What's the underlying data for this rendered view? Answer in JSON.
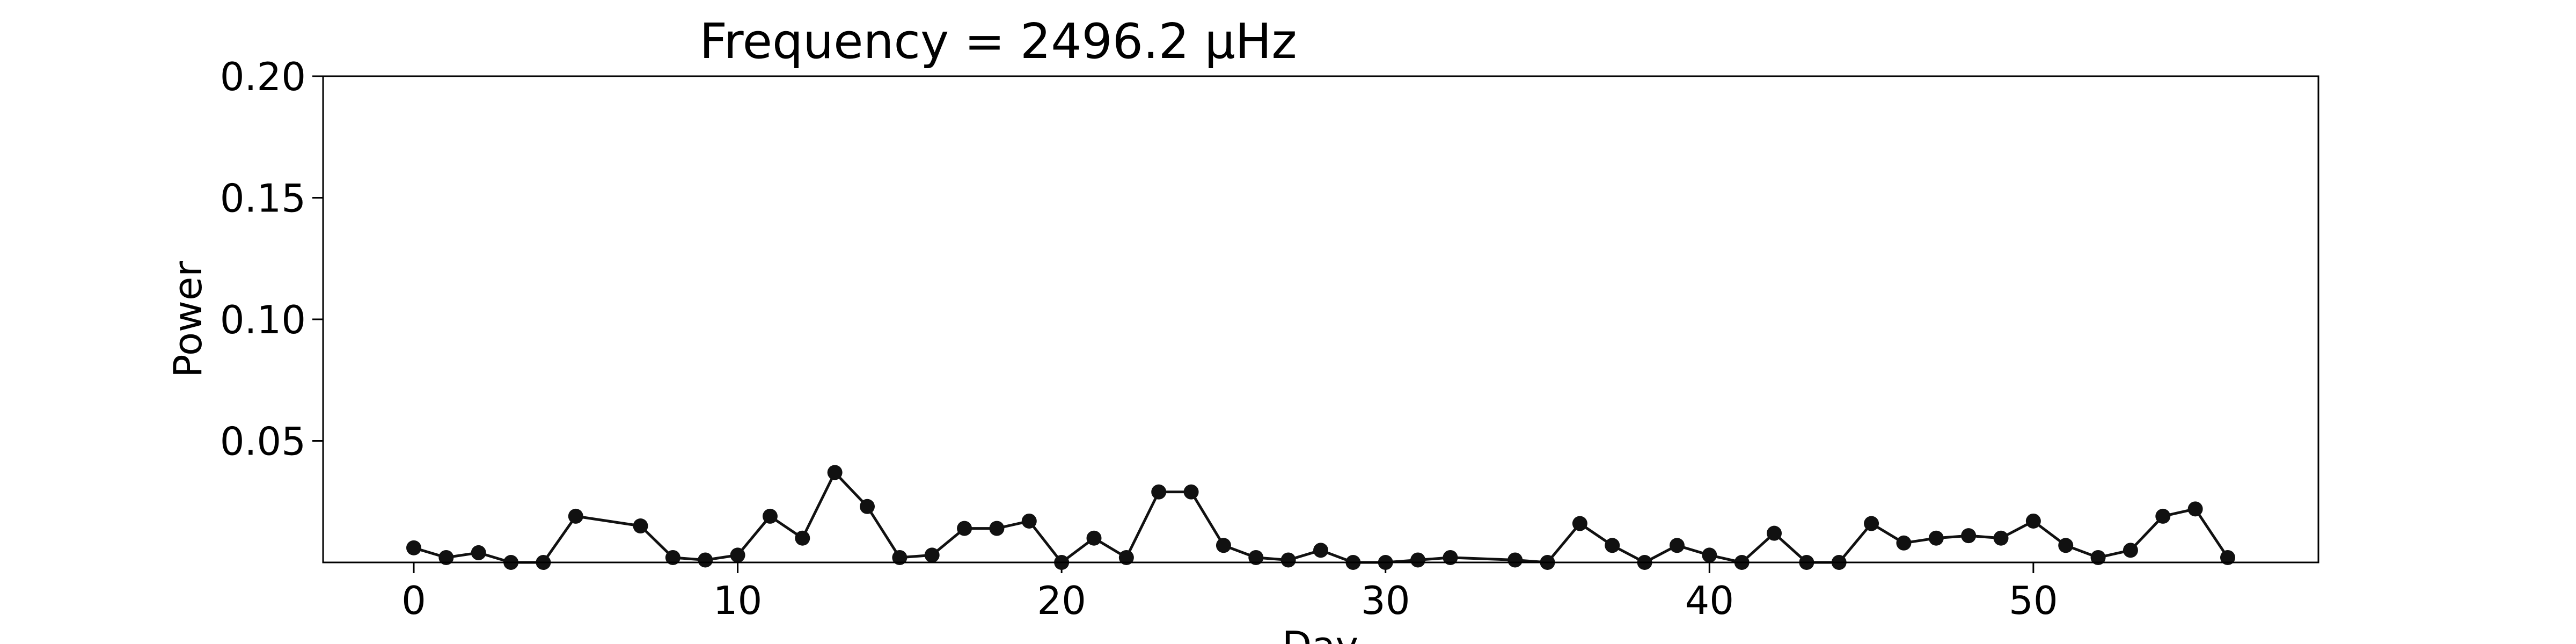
{
  "chart_data": {
    "type": "line",
    "title": "Frequency = 2496.2 μHz",
    "xlabel": "Day",
    "ylabel": "Power",
    "xlim": [
      -2.8,
      58.8
    ],
    "ylim": [
      0,
      0.2
    ],
    "xticks": [
      0,
      10,
      20,
      30,
      40,
      50
    ],
    "xtick_labels": [
      "0",
      "10",
      "20",
      "30",
      "40",
      "50"
    ],
    "yticks": [
      0.05,
      0.1,
      0.15,
      0.2
    ],
    "ytick_labels": [
      "0.05",
      "0.10",
      "0.15",
      "0.20"
    ],
    "grid": false,
    "legend": null,
    "series": [
      {
        "color": "#111111",
        "marker": "circle",
        "points": [
          [
            0,
            0.006
          ],
          [
            1,
            0.002
          ],
          [
            2,
            0.004
          ],
          [
            3,
            0.0
          ],
          [
            4,
            0.0
          ],
          [
            5,
            0.019
          ],
          [
            7,
            0.015
          ],
          [
            8,
            0.002
          ],
          [
            9,
            0.001
          ],
          [
            10,
            0.003
          ],
          [
            11,
            0.019
          ],
          [
            12,
            0.01
          ],
          [
            13,
            0.037
          ],
          [
            14,
            0.023
          ],
          [
            15,
            0.002
          ],
          [
            16,
            0.003
          ],
          [
            17,
            0.014
          ],
          [
            18,
            0.014
          ],
          [
            19,
            0.017
          ],
          [
            20,
            0.0
          ],
          [
            21,
            0.01
          ],
          [
            22,
            0.002
          ],
          [
            23,
            0.029
          ],
          [
            24,
            0.029
          ],
          [
            25,
            0.007
          ],
          [
            26,
            0.002
          ],
          [
            27,
            0.001
          ],
          [
            28,
            0.005
          ],
          [
            29,
            0.0
          ],
          [
            30,
            0.0
          ],
          [
            31,
            0.001
          ],
          [
            32,
            0.002
          ],
          [
            34,
            0.001
          ],
          [
            35,
            0.0
          ],
          [
            36,
            0.016
          ],
          [
            37,
            0.007
          ],
          [
            38,
            0.0
          ],
          [
            39,
            0.007
          ],
          [
            40,
            0.003
          ],
          [
            41,
            0.0
          ],
          [
            42,
            0.012
          ],
          [
            43,
            0.0
          ],
          [
            44,
            0.0
          ],
          [
            45,
            0.016
          ],
          [
            46,
            0.008
          ],
          [
            47,
            0.01
          ],
          [
            48,
            0.011
          ],
          [
            49,
            0.01
          ],
          [
            50,
            0.017
          ],
          [
            51,
            0.007
          ],
          [
            52,
            0.002
          ],
          [
            53,
            0.005
          ],
          [
            54,
            0.019
          ],
          [
            55,
            0.022
          ],
          [
            56,
            0.002
          ]
        ]
      }
    ]
  }
}
